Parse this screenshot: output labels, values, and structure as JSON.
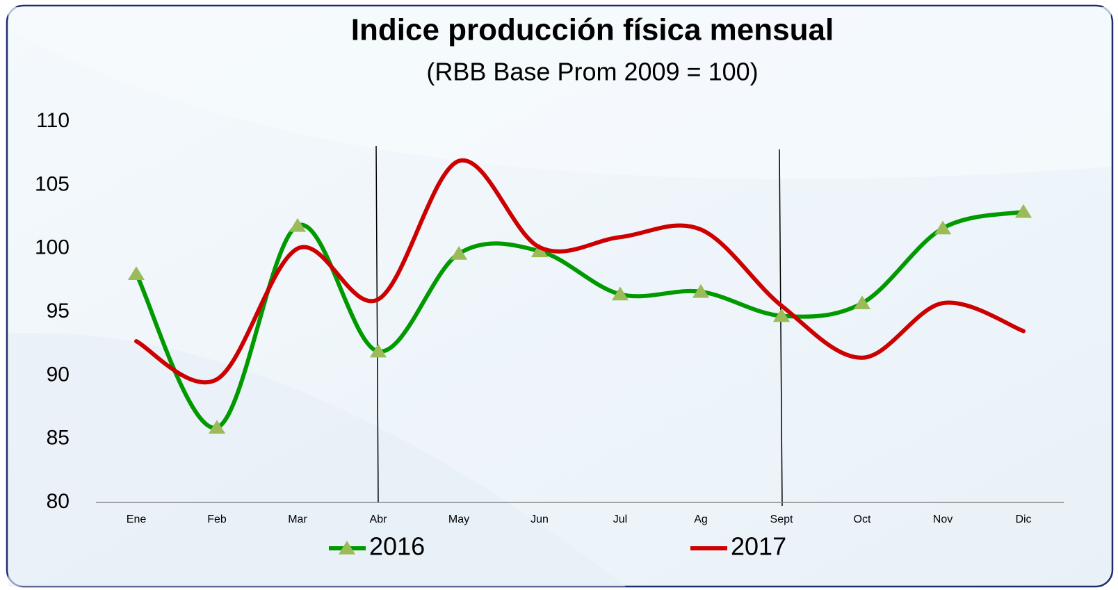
{
  "chart_data": {
    "type": "line",
    "title": "Indice producción física mensual",
    "subtitle": "(RBB Base Prom 2009 = 100)",
    "categories": [
      "Ene",
      "Feb",
      "Mar",
      "Abr",
      "May",
      "Jun",
      "Jul",
      "Ag",
      "Sept",
      "Oct",
      "Nov",
      "Dic"
    ],
    "series": [
      {
        "name": "2016",
        "color": "#009900",
        "marker_color": "#9bbb59",
        "values": [
          98.0,
          85.9,
          101.8,
          91.9,
          99.6,
          99.8,
          96.4,
          96.6,
          94.7,
          95.7,
          101.6,
          102.9
        ]
      },
      {
        "name": "2017",
        "color": "#cc0000",
        "values": [
          92.7,
          89.7,
          100.0,
          96.0,
          106.9,
          100.1,
          100.9,
          101.5,
          95.5,
          91.4,
          95.7,
          93.5
        ]
      }
    ],
    "ylim": [
      80,
      110
    ],
    "yticks": [
      80,
      85,
      90,
      95,
      100,
      105,
      110
    ],
    "grid": false,
    "legend": "bottom"
  }
}
